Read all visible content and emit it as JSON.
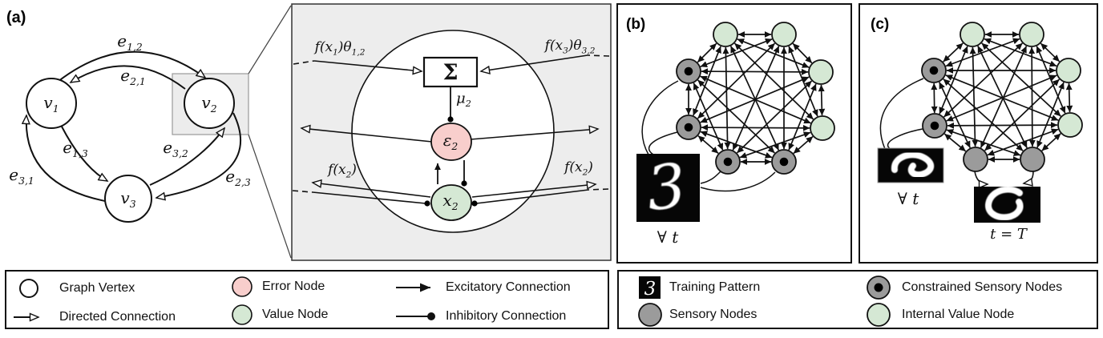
{
  "colors": {
    "value_node": "#d5e8d4",
    "error_node": "#f8cecc",
    "sensory_node": "#9b9b9b",
    "inset_background": "#ededed",
    "line": "#111111"
  },
  "panel_a": {
    "tag": "(a)",
    "vertices": [
      {
        "base": "v",
        "sub": "1"
      },
      {
        "base": "v",
        "sub": "2"
      },
      {
        "base": "v",
        "sub": "3"
      }
    ],
    "edges": [
      {
        "base": "e",
        "sub": "1,2"
      },
      {
        "base": "e",
        "sub": "2,1"
      },
      {
        "base": "e",
        "sub": "1,3"
      },
      {
        "base": "e",
        "sub": "3,2"
      },
      {
        "base": "e",
        "sub": "3,1"
      },
      {
        "base": "e",
        "sub": "2,3"
      }
    ]
  },
  "inset": {
    "sum": "Σ",
    "mu": {
      "base": "μ",
      "sub": "2"
    },
    "error": {
      "base": "ε",
      "sub": "2"
    },
    "value": {
      "base": "x",
      "sub": "2"
    },
    "in_left": [
      "f(x",
      "1",
      ")θ",
      "1,2"
    ],
    "in_right": [
      "f(x",
      "3",
      ")θ",
      "3,2"
    ],
    "out_left": [
      "f(x",
      "2",
      ")"
    ],
    "out_right": [
      "f(x",
      "2",
      ")"
    ]
  },
  "panel_b": {
    "tag": "(b)",
    "digit": "3",
    "forall": "∀ t",
    "node_types": [
      "value",
      "value",
      "constrained",
      "constrained",
      "value",
      "value",
      "constrained",
      "constrained"
    ]
  },
  "panel_c": {
    "tag": "(c)",
    "forall": "∀ t",
    "t_final": "t = T",
    "node_types": [
      "value",
      "value",
      "constrained",
      "constrained",
      "value",
      "value",
      "sensory",
      "sensory"
    ]
  },
  "legend_left": {
    "items": [
      {
        "icon": "graph-vertex",
        "label": "Graph Vertex"
      },
      {
        "icon": "directed-connection",
        "label": "Directed Connection"
      },
      {
        "icon": "error-node",
        "label": "Error Node"
      },
      {
        "icon": "value-node",
        "label": "Value Node"
      },
      {
        "icon": "excitatory-connection",
        "label": "Excitatory Connection"
      },
      {
        "icon": "inhibitory-connection",
        "label": "Inhibitory Connection"
      }
    ]
  },
  "legend_right": {
    "digit": "3",
    "items": [
      {
        "icon": "training-pattern",
        "label": "Training Pattern"
      },
      {
        "icon": "sensory-node",
        "label": "Sensory Nodes"
      },
      {
        "icon": "constrained-sensory-node",
        "label": "Constrained Sensory Nodes"
      },
      {
        "icon": "internal-value-node",
        "label": "Internal Value Node"
      }
    ]
  }
}
